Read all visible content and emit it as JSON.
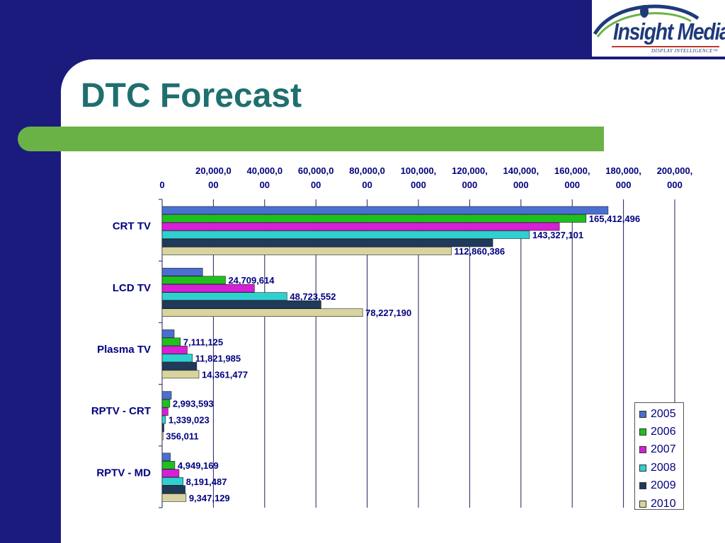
{
  "slide": {
    "title": "DTC Forecast"
  },
  "logo": {
    "name": "Insight Media",
    "tagline": "DISPLAY INTELLIGENCE™"
  },
  "colors": {
    "background": "#1b1b7e",
    "title": "#1f6f6f",
    "accent_bar": "#6ab245",
    "label_text": "#000080"
  },
  "chart_data": {
    "type": "bar",
    "orientation": "horizontal",
    "categories": [
      "CRT TV",
      "LCD TV",
      "Plasma TV",
      "RPTV - CRT",
      "RPTV - MD"
    ],
    "xlim": [
      0,
      200000000
    ],
    "x_ticks": [
      {
        "value": 0,
        "label": [
          "0"
        ]
      },
      {
        "value": 20000000,
        "label": [
          "20,000,0",
          "00"
        ]
      },
      {
        "value": 40000000,
        "label": [
          "40,000,0",
          "00"
        ]
      },
      {
        "value": 60000000,
        "label": [
          "60,000,0",
          "00"
        ]
      },
      {
        "value": 80000000,
        "label": [
          "80,000,0",
          "00"
        ]
      },
      {
        "value": 100000000,
        "label": [
          "100,000,",
          "000"
        ]
      },
      {
        "value": 120000000,
        "label": [
          "120,000,",
          "000"
        ]
      },
      {
        "value": 140000000,
        "label": [
          "140,000,",
          "000"
        ]
      },
      {
        "value": 160000000,
        "label": [
          "160,000,",
          "000"
        ]
      },
      {
        "value": 180000000,
        "label": [
          "180,000,",
          "000"
        ]
      },
      {
        "value": 200000000,
        "label": [
          "200,000,",
          "000"
        ]
      }
    ],
    "grid": true,
    "legend_position": "bottom-right",
    "series": [
      {
        "name": "2005",
        "color": "#4a6fd0",
        "values": [
          174000000,
          15800000,
          4700000,
          3600000,
          3200000
        ],
        "labels": [
          null,
          null,
          null,
          null,
          null
        ]
      },
      {
        "name": "2006",
        "color": "#1fbf1f",
        "values": [
          165412496,
          24709614,
          7111125,
          2993593,
          4949169
        ],
        "labels": [
          "165,412,496",
          "24,709,614",
          "7,111,125",
          "2,993,593",
          "4,949,169"
        ]
      },
      {
        "name": "2007",
        "color": "#d61fd6",
        "values": [
          155000000,
          36000000,
          9800000,
          2300000,
          6600000
        ],
        "labels": [
          null,
          null,
          null,
          null,
          null
        ]
      },
      {
        "name": "2008",
        "color": "#2fd0d0",
        "values": [
          143327101,
          48723552,
          11821985,
          1339023,
          8191487
        ],
        "labels": [
          "143,327,101",
          "48,723,552",
          "11,821,985",
          "1,339,023",
          "8,191,487"
        ]
      },
      {
        "name": "2009",
        "color": "#1f3a5a",
        "values": [
          129000000,
          62000000,
          13500000,
          700000,
          9000000
        ],
        "labels": [
          null,
          null,
          null,
          null,
          null
        ]
      },
      {
        "name": "2010",
        "color": "#d8d4a0",
        "values": [
          112860386,
          78227190,
          14361477,
          356011,
          9347129
        ],
        "labels": [
          "112,860,386",
          "78,227,190",
          "14,361,477",
          "356,011",
          "9,347,129"
        ]
      }
    ]
  }
}
